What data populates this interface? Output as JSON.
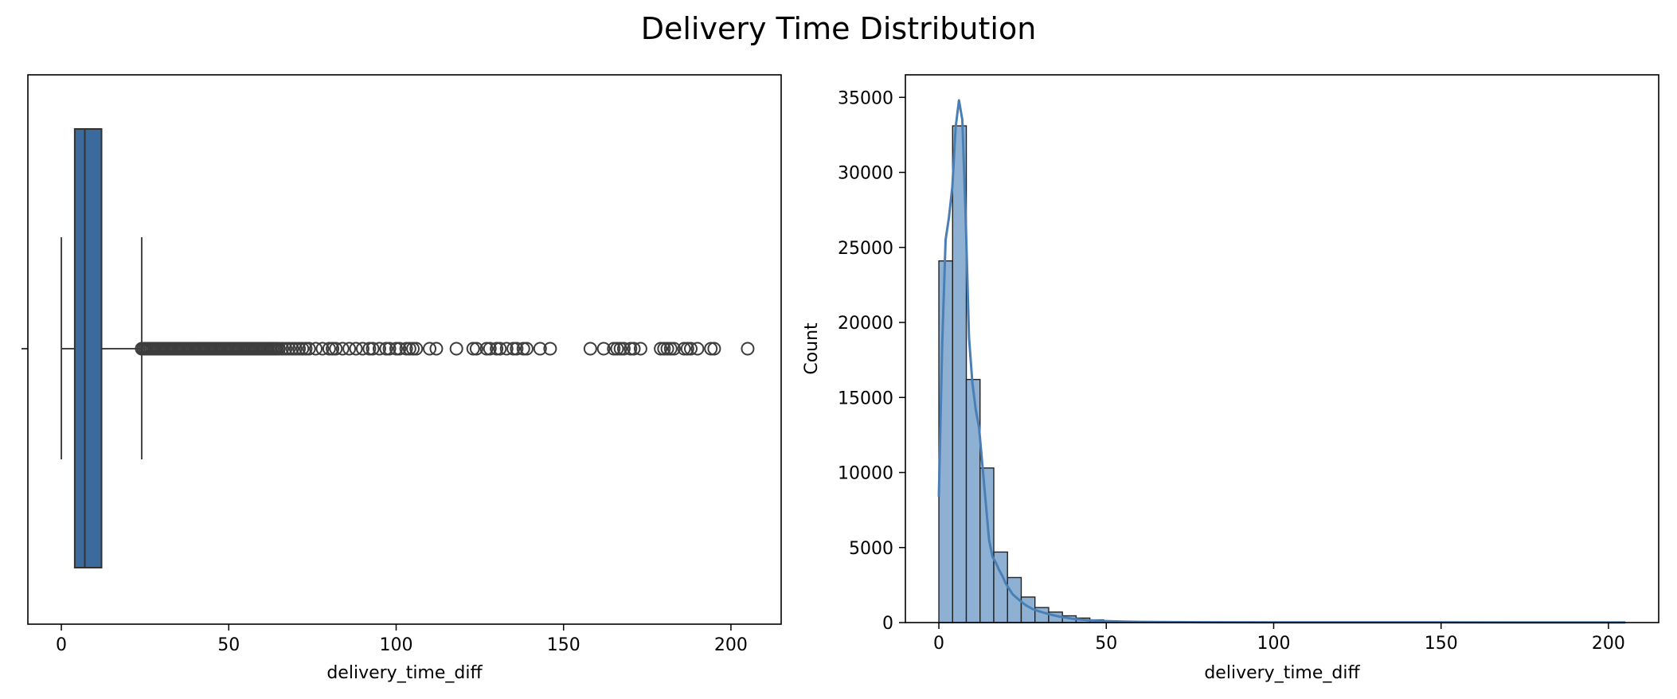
{
  "figure_title": "Delivery Time Distribution",
  "chart_data": [
    {
      "type": "box",
      "title": "",
      "xlabel": "delivery_time_diff",
      "ylabel": "",
      "xlim": [
        -10,
        215
      ],
      "xticks": [
        0,
        50,
        100,
        150,
        200
      ],
      "grid": false,
      "color": "#3b6b9c",
      "box": {
        "whisker_low": 0,
        "q1": 4,
        "median": 7,
        "q3": 12,
        "whisker_high": 24
      },
      "outliers": [
        24,
        24.5,
        25,
        25.5,
        26,
        26.5,
        27,
        27.5,
        28,
        28.5,
        29,
        29.5,
        30,
        30.5,
        31,
        31.5,
        32,
        32.5,
        33,
        33.5,
        34,
        34.5,
        35,
        35.5,
        36,
        36.5,
        37,
        37.5,
        38,
        38.5,
        39,
        39.5,
        40,
        40.5,
        41,
        41.5,
        42,
        42.5,
        43,
        43.5,
        44,
        44.5,
        45,
        45.5,
        46,
        46.5,
        47,
        47.5,
        48,
        48.5,
        49,
        49.5,
        50,
        50.5,
        51,
        51.5,
        52,
        52.5,
        53,
        53.5,
        54,
        54.5,
        55,
        55.5,
        56,
        56.5,
        57,
        57.5,
        58,
        58.5,
        59,
        59.5,
        60,
        60.5,
        61,
        61.5,
        62,
        62.5,
        63,
        63.5,
        64,
        64.5,
        65,
        66,
        67,
        68,
        69,
        70,
        71,
        72,
        73,
        74,
        76,
        78,
        80,
        81,
        82,
        84,
        86,
        88,
        90,
        92,
        93,
        95,
        97,
        98,
        100,
        101,
        103,
        104,
        105,
        106,
        110,
        112,
        118,
        123,
        124,
        127,
        128,
        130,
        131,
        133,
        135,
        136,
        138,
        139,
        143,
        146,
        158,
        162,
        165,
        166,
        167,
        168,
        170,
        171,
        173,
        179,
        180,
        181,
        182,
        183,
        186,
        187,
        188,
        190,
        194,
        195,
        205
      ]
    },
    {
      "type": "histogram",
      "title": "",
      "xlabel": "delivery_time_diff",
      "ylabel": "Count",
      "xlim": [
        -10,
        215
      ],
      "ylim": [
        0,
        36500
      ],
      "xticks": [
        0,
        50,
        100,
        150,
        200
      ],
      "yticks": [
        0,
        5000,
        10000,
        15000,
        20000,
        25000,
        30000,
        35000
      ],
      "grid": false,
      "bar_color": "#8eb0d2",
      "kde_color": "#4a7fb5",
      "bin_start": 0,
      "bin_width": 4.1,
      "counts": [
        24100,
        33100,
        16200,
        10300,
        4700,
        3000,
        1700,
        1000,
        700,
        450,
        300,
        180,
        120,
        80,
        60,
        40,
        30,
        25,
        20,
        15,
        12,
        10,
        8,
        6,
        5,
        4,
        3,
        3,
        2,
        2,
        2,
        2,
        2,
        1,
        1,
        1,
        1,
        1,
        1,
        1,
        1,
        1,
        1,
        1,
        1,
        1,
        1,
        1,
        1,
        1
      ],
      "kde": {
        "x": [
          0,
          1,
          2,
          3,
          4,
          5,
          6,
          7,
          8,
          9,
          10,
          11,
          12,
          13,
          14,
          15,
          16,
          17,
          18,
          19,
          20,
          22,
          24,
          26,
          28,
          30,
          33,
          36,
          40,
          45,
          50,
          55,
          60,
          70,
          80,
          100,
          150,
          205
        ],
        "y": [
          8400,
          18500,
          25500,
          27000,
          29000,
          33000,
          34800,
          33500,
          27000,
          19000,
          16000,
          14200,
          13000,
          10500,
          8000,
          5500,
          4400,
          4000,
          3500,
          3100,
          2600,
          1900,
          1500,
          1150,
          900,
          750,
          550,
          400,
          250,
          150,
          100,
          70,
          50,
          30,
          20,
          15,
          10,
          5
        ]
      }
    }
  ]
}
